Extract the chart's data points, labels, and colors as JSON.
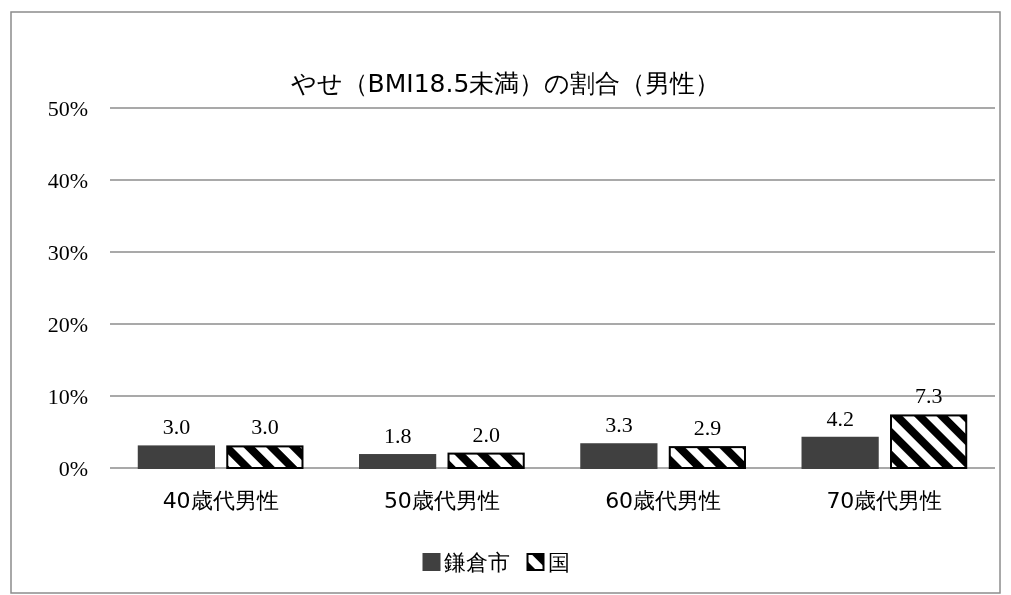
{
  "chart_data": {
    "type": "bar",
    "title": "やせ（BMI18.5未満）の割合（男性）",
    "categories": [
      "40歳代男性",
      "50歳代男性",
      "60歳代男性",
      "70歳代男性"
    ],
    "series": [
      {
        "name": "鎌倉市",
        "color": "#404040",
        "values": [
          3.0,
          1.8,
          3.3,
          4.2
        ],
        "value_labels": [
          "3.0",
          "1.8",
          "3.3",
          "4.2"
        ]
      },
      {
        "name": "国",
        "color": "#000000",
        "values": [
          3.0,
          2.0,
          2.9,
          7.3
        ],
        "value_labels": [
          "3.0",
          "2.0",
          "2.9",
          "7.3"
        ]
      }
    ],
    "ylim": [
      0,
      50
    ],
    "yticks": [
      {
        "value": 0,
        "label": "0%"
      },
      {
        "value": 10,
        "label": "10%"
      },
      {
        "value": 20,
        "label": "20%"
      },
      {
        "value": 30,
        "label": "30%"
      },
      {
        "value": 40,
        "label": "40%"
      },
      {
        "value": 50,
        "label": "50%"
      }
    ],
    "grid": "y",
    "legend": "bottom"
  }
}
